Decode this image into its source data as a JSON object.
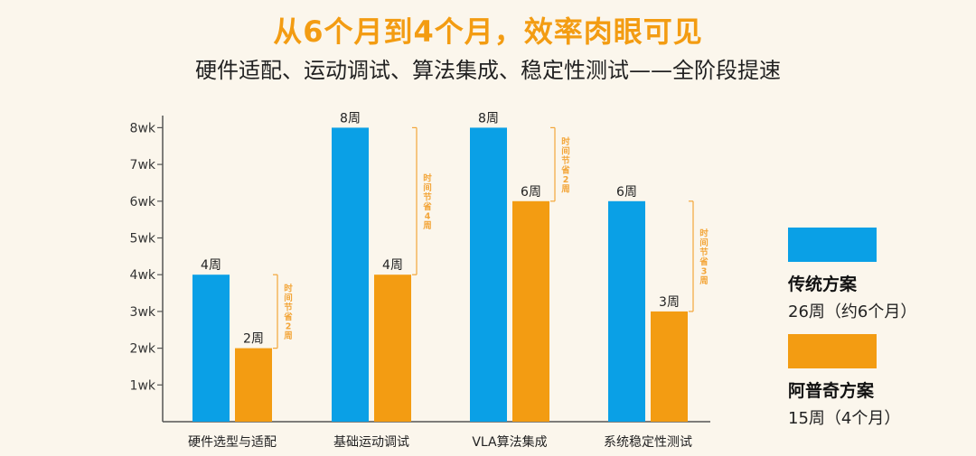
{
  "title": "从6个月到4个月，效率肉眼可见",
  "subtitle": "硬件适配、运动调试、算法集成、稳定性测试——全阶段提速",
  "colors": {
    "traditional": "#0aa0e6",
    "apus": "#f39c12",
    "savings": "#f3a63a",
    "axis": "#555555"
  },
  "chart_data": {
    "type": "bar",
    "categories": [
      "硬件选型与适配",
      "基础运动调试",
      "VLA算法集成",
      "系统稳定性测试"
    ],
    "y_ticks": [
      "1wk",
      "2wk",
      "3wk",
      "4wk",
      "5wk",
      "6wk",
      "7wk",
      "8wk"
    ],
    "ylim": [
      0,
      8
    ],
    "series": [
      {
        "name": "传统方案",
        "values": [
          4,
          8,
          8,
          6
        ],
        "labels": [
          "4周",
          "8周",
          "8周",
          "6周"
        ]
      },
      {
        "name": "阿普奇方案",
        "values": [
          2,
          4,
          6,
          3
        ],
        "labels": [
          "2周",
          "4周",
          "6周",
          "3周"
        ]
      }
    ],
    "annotations": [
      "时间节省2周",
      "时间节省4周",
      "时间节省2周",
      "时间节省3周"
    ]
  },
  "legend": [
    {
      "name": "传统方案",
      "desc": "26周（约6个月）"
    },
    {
      "name": "阿普奇方案",
      "desc": "15周（4个月）"
    }
  ]
}
